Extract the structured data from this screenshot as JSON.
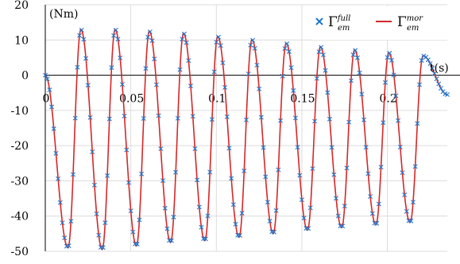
{
  "chart_data": {
    "type": "line",
    "ylabel": "(Nm)",
    "xlabel": "t(s)",
    "xlim": [
      0,
      0.235
    ],
    "ylim": [
      -50,
      20
    ],
    "yticks": [
      20,
      10,
      0,
      -10,
      -20,
      -30,
      -40,
      -50
    ],
    "xticks": [
      {
        "value": 0,
        "label": "0"
      },
      {
        "value": 0.05,
        "label": "0.05"
      },
      {
        "value": 0.1,
        "label": "0.1"
      },
      {
        "value": 0.15,
        "label": "0.15"
      },
      {
        "value": 0.2,
        "label": "0.2"
      }
    ],
    "grid": true,
    "legend_position": "top-right",
    "series": [
      {
        "name": "Γ_em^full",
        "symbol": "Γ",
        "sub": "em",
        "sup": "full",
        "style": "x-markers",
        "color": "#1f77d0"
      },
      {
        "name": "Γ_em^mor",
        "symbol": "Γ",
        "sub": "em",
        "sup": "mor",
        "style": "line",
        "color": "#d62728"
      }
    ],
    "waveform": {
      "period": 0.02,
      "first_peak_t": 0.0208,
      "peaks": [
        13,
        13,
        12.5,
        11.9,
        11,
        10.1,
        9.1,
        8.1,
        7.2,
        6.4,
        5.5
      ],
      "troughs": [
        -49,
        -49.5,
        -48.5,
        -47.5,
        -47,
        -46,
        -45,
        -44,
        -43.3,
        -42.5,
        -41.8
      ],
      "trough_times": [
        0.0133,
        0.0333,
        0.0533,
        0.0733,
        0.0933,
        0.1133,
        0.1333,
        0.1533,
        0.1733,
        0.1933,
        0.2133
      ],
      "start_value": 0,
      "end_t": 0.235,
      "end_value": -5.5,
      "marker_step": 0.00125
    }
  }
}
